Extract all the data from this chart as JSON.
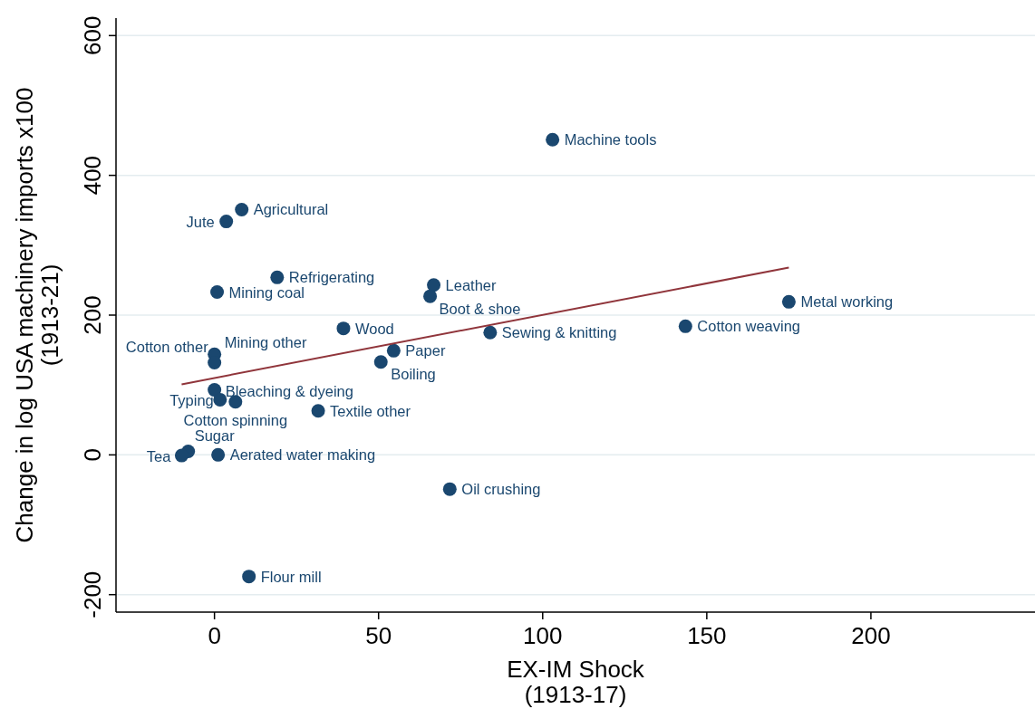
{
  "chart_data": {
    "type": "scatter",
    "xlabel": "EX-IM Shock\n(1913-17)",
    "ylabel": "Change in log USA machinery imports x100\n(1913-21)",
    "xlim": [
      -30,
      250
    ],
    "ylim": [
      -225,
      625
    ],
    "xticks": [
      0,
      50,
      100,
      150,
      200
    ],
    "yticks": [
      -200,
      0,
      200,
      400,
      600
    ],
    "grid": "y",
    "series": [
      {
        "marker": "circle",
        "color": "#1a476f",
        "x": [
          103,
          8.3,
          3.6,
          19.1,
          0.8,
          66.8,
          65.7,
          175,
          143.5,
          84,
          39.3,
          54.6,
          50.7,
          0,
          0,
          0,
          1.7,
          6.4,
          31.6,
          -8,
          -10,
          1.1,
          71.7,
          10.5
        ],
        "values": [
          451,
          351,
          334,
          254,
          233,
          243,
          227,
          219,
          184,
          175,
          181,
          149,
          133,
          144,
          132,
          93,
          79,
          76,
          63,
          5,
          -1,
          0,
          -49,
          -174
        ],
        "value_labels": [
          "Machine tools",
          "Agricultural",
          "Jute",
          "Refrigerating",
          "Mining coal",
          "Leather",
          "Boot & shoe",
          "Metal working",
          "Cotton weaving",
          "Sewing & knitting",
          "Wood",
          "Paper",
          "Boiling",
          "Cotton other",
          "Mining other",
          "Bleaching & dyeing",
          "Typing",
          "Cotton spinning",
          "Textile other",
          "Sugar",
          "Tea",
          "Aerated water making",
          "Oil crushing",
          "Flour mill"
        ]
      },
      {
        "type": "line",
        "color": "#90353b",
        "x": [
          -10,
          175
        ],
        "values": [
          101,
          268
        ],
        "line_style": "solid"
      }
    ]
  }
}
